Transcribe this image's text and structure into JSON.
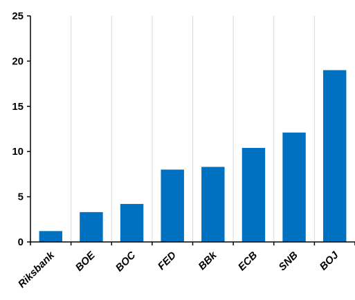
{
  "chart_data": {
    "type": "bar",
    "categories": [
      "Riksbank",
      "BOE",
      "BOC",
      "FED",
      "BBk",
      "ECB",
      "SNB",
      "BOJ"
    ],
    "values": [
      1.2,
      3.3,
      4.2,
      8.0,
      8.3,
      10.4,
      12.1,
      19.0
    ],
    "title": "",
    "xlabel": "",
    "ylabel": "",
    "ylim": [
      0,
      25
    ],
    "yticks": [
      0,
      5,
      10,
      15,
      20,
      25
    ],
    "grid": "vertical",
    "legend": "none",
    "bar_color": "#0070C0",
    "grid_color": "#d9d9d9"
  }
}
